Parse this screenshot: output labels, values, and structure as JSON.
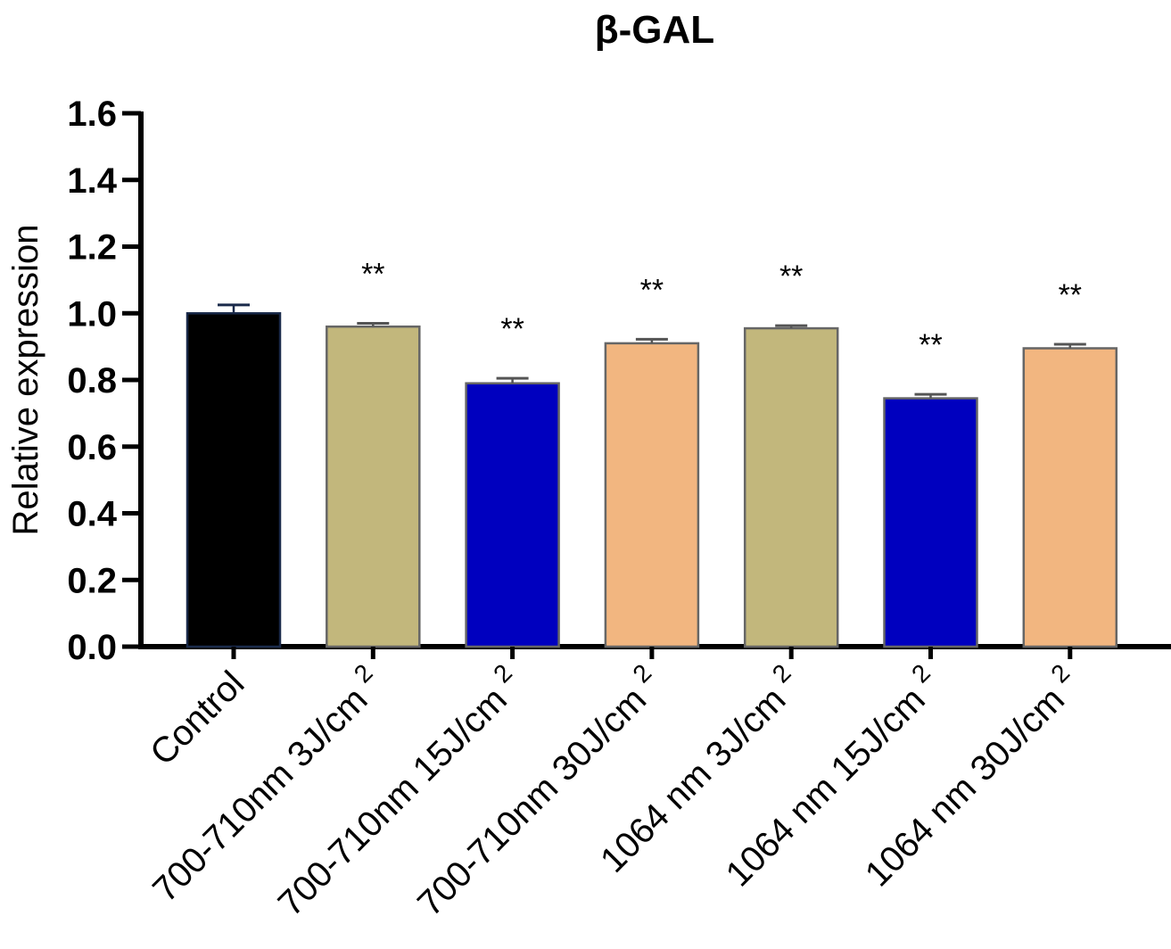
{
  "chart_data": {
    "type": "bar",
    "title": "β-GAL",
    "xlabel": "",
    "ylabel": "Relative expression",
    "ylim": [
      0,
      1.6
    ],
    "yticks": [
      "0.0",
      "0.2",
      "0.4",
      "0.6",
      "0.8",
      "1.0",
      "1.2",
      "1.4",
      "1.6"
    ],
    "ytick_values": [
      0,
      0.2,
      0.4,
      0.6,
      0.8,
      1.0,
      1.2,
      1.4,
      1.6
    ],
    "categories": [
      {
        "base": "Control",
        "sup": ""
      },
      {
        "base": "700-710nm 3J/cm",
        "sup": "2"
      },
      {
        "base": "700-710nm 15J/cm",
        "sup": "2"
      },
      {
        "base": "700-710nm 30J/cm",
        "sup": "2"
      },
      {
        "base": "1064 nm 3J/cm",
        "sup": "2"
      },
      {
        "base": "1064 nm 15J/cm",
        "sup": "2"
      },
      {
        "base": "1064 nm 30J/cm",
        "sup": "2"
      }
    ],
    "values": [
      1.0,
      0.96,
      0.79,
      0.91,
      0.955,
      0.745,
      0.895
    ],
    "errors": [
      0.025,
      0.01,
      0.015,
      0.012,
      0.008,
      0.012,
      0.012
    ],
    "significance": [
      "",
      "**",
      "**",
      "**",
      "**",
      "**",
      "**"
    ],
    "colors": [
      "#000000",
      "#c2b77c",
      "#0000bf",
      "#f2b680",
      "#c2b77c",
      "#0000bf",
      "#f2b680"
    ],
    "edge_colors": [
      "#1a2a4a",
      "#666666",
      "#666666",
      "#666666",
      "#666666",
      "#666666",
      "#666666"
    ],
    "error_color_control": "#1a2a4a",
    "error_color": "#555555",
    "grid": false,
    "legend": "none"
  }
}
